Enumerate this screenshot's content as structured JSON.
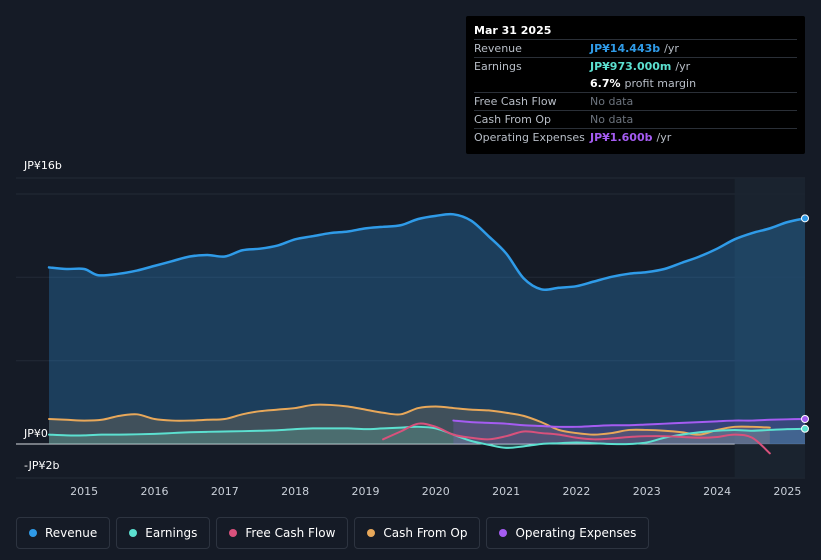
{
  "tooltip": {
    "date": "Mar 31 2025",
    "rows": [
      {
        "label": "Revenue",
        "value": "JP¥14.443b",
        "unit": "/yr",
        "color": "#2f9be8"
      },
      {
        "label": "Earnings",
        "value": "JP¥973.000m",
        "unit": "/yr",
        "color": "#5ce0d0"
      },
      {
        "label": "",
        "value": "6.7%",
        "unit": "profit margin",
        "color": "#ffffff"
      },
      {
        "label": "Free Cash Flow",
        "value": "No data",
        "unit": "",
        "color": ""
      },
      {
        "label": "Cash From Op",
        "value": "No data",
        "unit": "",
        "color": ""
      },
      {
        "label": "Operating Expenses",
        "value": "JP¥1.600b",
        "unit": "/yr",
        "color": "#a55cf2"
      }
    ]
  },
  "legend": [
    {
      "label": "Revenue",
      "color": "#2f9be8"
    },
    {
      "label": "Earnings",
      "color": "#5ce0d0"
    },
    {
      "label": "Free Cash Flow",
      "color": "#d9517c"
    },
    {
      "label": "Cash From Op",
      "color": "#e8a85a"
    },
    {
      "label": "Operating Expenses",
      "color": "#a55cf2"
    }
  ],
  "chart_data": {
    "type": "area",
    "title": "",
    "ylabel": "",
    "y_tick_labels": [
      "JP¥16b",
      "JP¥0",
      "-JP¥2b"
    ],
    "ylim": [
      -2,
      16
    ],
    "xlim": [
      2014.5,
      2025.25
    ],
    "x_tick_labels": [
      "2015",
      "2016",
      "2017",
      "2018",
      "2019",
      "2020",
      "2021",
      "2022",
      "2023",
      "2024",
      "2025"
    ],
    "forecast_from": 2024.25,
    "series": [
      {
        "name": "Revenue",
        "color": "#2f9be8",
        "fill": true,
        "x": [
          2014.5,
          2014.75,
          2015.0,
          2015.2,
          2015.5,
          2015.75,
          2016.0,
          2016.25,
          2016.5,
          2016.75,
          2017.0,
          2017.25,
          2017.5,
          2017.75,
          2018.0,
          2018.25,
          2018.5,
          2018.75,
          2019.0,
          2019.25,
          2019.5,
          2019.75,
          2020.0,
          2020.25,
          2020.5,
          2020.75,
          2021.0,
          2021.25,
          2021.5,
          2021.75,
          2022.0,
          2022.25,
          2022.5,
          2022.75,
          2023.0,
          2023.25,
          2023.5,
          2023.75,
          2024.0,
          2024.25,
          2024.5,
          2024.75,
          2025.0,
          2025.25
        ],
        "values": [
          11.3,
          11.2,
          11.2,
          10.8,
          10.9,
          11.1,
          11.4,
          11.7,
          12.0,
          12.1,
          12.0,
          12.4,
          12.5,
          12.7,
          13.1,
          13.3,
          13.5,
          13.6,
          13.8,
          13.9,
          14.0,
          14.4,
          14.6,
          14.7,
          14.3,
          13.3,
          12.2,
          10.6,
          9.9,
          10.0,
          10.1,
          10.4,
          10.7,
          10.9,
          11.0,
          11.2,
          11.6,
          12.0,
          12.5,
          13.1,
          13.5,
          13.8,
          14.2,
          14.443
        ]
      },
      {
        "name": "Earnings",
        "color": "#5ce0d0",
        "fill": true,
        "x": [
          2014.5,
          2014.75,
          2015.0,
          2015.25,
          2015.5,
          2015.75,
          2016.0,
          2016.25,
          2016.5,
          2016.75,
          2017.0,
          2017.25,
          2017.5,
          2017.75,
          2018.0,
          2018.25,
          2018.5,
          2018.75,
          2019.0,
          2019.25,
          2019.5,
          2019.75,
          2020.0,
          2020.25,
          2020.5,
          2020.75,
          2021.0,
          2021.25,
          2021.5,
          2021.75,
          2022.0,
          2022.25,
          2022.5,
          2022.75,
          2023.0,
          2023.25,
          2023.5,
          2023.75,
          2024.0,
          2024.25,
          2024.5,
          2024.75,
          2025.0,
          2025.25
        ],
        "values": [
          0.6,
          0.55,
          0.55,
          0.6,
          0.6,
          0.62,
          0.65,
          0.7,
          0.75,
          0.78,
          0.8,
          0.82,
          0.85,
          0.88,
          0.95,
          1.0,
          1.0,
          1.0,
          0.95,
          1.0,
          1.05,
          1.1,
          1.0,
          0.6,
          0.2,
          -0.05,
          -0.25,
          -0.15,
          0.0,
          0.05,
          0.1,
          0.05,
          0.0,
          0.0,
          0.1,
          0.4,
          0.6,
          0.75,
          0.85,
          0.9,
          0.85,
          0.9,
          0.95,
          0.973
        ]
      },
      {
        "name": "Free Cash Flow",
        "color": "#d9517c",
        "fill": false,
        "x": [
          2019.25,
          2019.5,
          2019.75,
          2020.0,
          2020.25,
          2020.5,
          2020.75,
          2021.0,
          2021.25,
          2021.5,
          2021.75,
          2022.0,
          2022.25,
          2022.5,
          2022.75,
          2023.0,
          2023.25,
          2023.5,
          2023.75,
          2024.0,
          2024.25,
          2024.5,
          2024.75
        ],
        "values": [
          0.3,
          0.8,
          1.3,
          1.1,
          0.6,
          0.4,
          0.3,
          0.5,
          0.8,
          0.7,
          0.6,
          0.4,
          0.3,
          0.35,
          0.45,
          0.5,
          0.5,
          0.45,
          0.4,
          0.45,
          0.6,
          0.4,
          -0.6
        ]
      },
      {
        "name": "Cash From Op",
        "color": "#e8a85a",
        "fill": true,
        "x": [
          2014.5,
          2014.75,
          2015.0,
          2015.25,
          2015.5,
          2015.75,
          2016.0,
          2016.25,
          2016.5,
          2016.75,
          2017.0,
          2017.25,
          2017.5,
          2017.75,
          2018.0,
          2018.25,
          2018.5,
          2018.75,
          2019.0,
          2019.25,
          2019.5,
          2019.75,
          2020.0,
          2020.25,
          2020.5,
          2020.75,
          2021.0,
          2021.25,
          2021.5,
          2021.75,
          2022.0,
          2022.25,
          2022.5,
          2022.75,
          2023.0,
          2023.25,
          2023.5,
          2023.75,
          2024.0,
          2024.25,
          2024.5,
          2024.75
        ],
        "values": [
          1.6,
          1.55,
          1.5,
          1.55,
          1.8,
          1.9,
          1.6,
          1.5,
          1.5,
          1.55,
          1.6,
          1.9,
          2.1,
          2.2,
          2.3,
          2.5,
          2.5,
          2.4,
          2.2,
          2.0,
          1.9,
          2.3,
          2.4,
          2.3,
          2.2,
          2.15,
          2.0,
          1.8,
          1.4,
          0.9,
          0.7,
          0.6,
          0.7,
          0.9,
          0.9,
          0.85,
          0.75,
          0.6,
          0.9,
          1.1,
          1.1,
          1.05
        ]
      },
      {
        "name": "Operating Expenses",
        "color": "#a55cf2",
        "fill": true,
        "x": [
          2020.25,
          2020.5,
          2020.75,
          2021.0,
          2021.25,
          2021.5,
          2021.75,
          2022.0,
          2022.25,
          2022.5,
          2022.75,
          2023.0,
          2023.25,
          2023.5,
          2023.75,
          2024.0,
          2024.25,
          2024.5,
          2024.75,
          2025.0,
          2025.25
        ],
        "values": [
          1.5,
          1.4,
          1.35,
          1.3,
          1.2,
          1.15,
          1.1,
          1.1,
          1.15,
          1.2,
          1.2,
          1.25,
          1.3,
          1.35,
          1.4,
          1.45,
          1.5,
          1.5,
          1.55,
          1.58,
          1.6
        ]
      }
    ]
  }
}
